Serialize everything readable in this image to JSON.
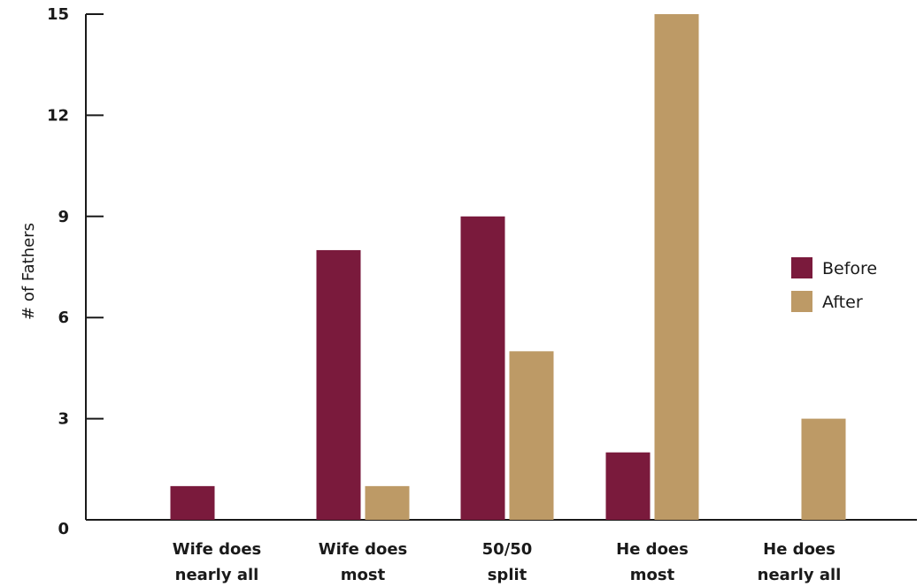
{
  "chart_data": {
    "type": "bar",
    "categories": [
      [
        "Wife does",
        "nearly all"
      ],
      [
        "Wife does",
        "most"
      ],
      [
        "50/50",
        "split"
      ],
      [
        "He does",
        "most"
      ],
      [
        "He does",
        "nearly all"
      ]
    ],
    "series": [
      {
        "name": "Before",
        "color": "#7a1a3c",
        "values": [
          1,
          8,
          9,
          2,
          0
        ]
      },
      {
        "name": "After",
        "color": "#bd9a66",
        "values": [
          0,
          1,
          5,
          15,
          3
        ]
      }
    ],
    "title": "",
    "xlabel": "",
    "ylabel": "# of Fathers",
    "ylim": [
      0,
      15
    ],
    "yticks": [
      0,
      3,
      6,
      9,
      12,
      15
    ],
    "grid": false,
    "legend_position": "right"
  }
}
